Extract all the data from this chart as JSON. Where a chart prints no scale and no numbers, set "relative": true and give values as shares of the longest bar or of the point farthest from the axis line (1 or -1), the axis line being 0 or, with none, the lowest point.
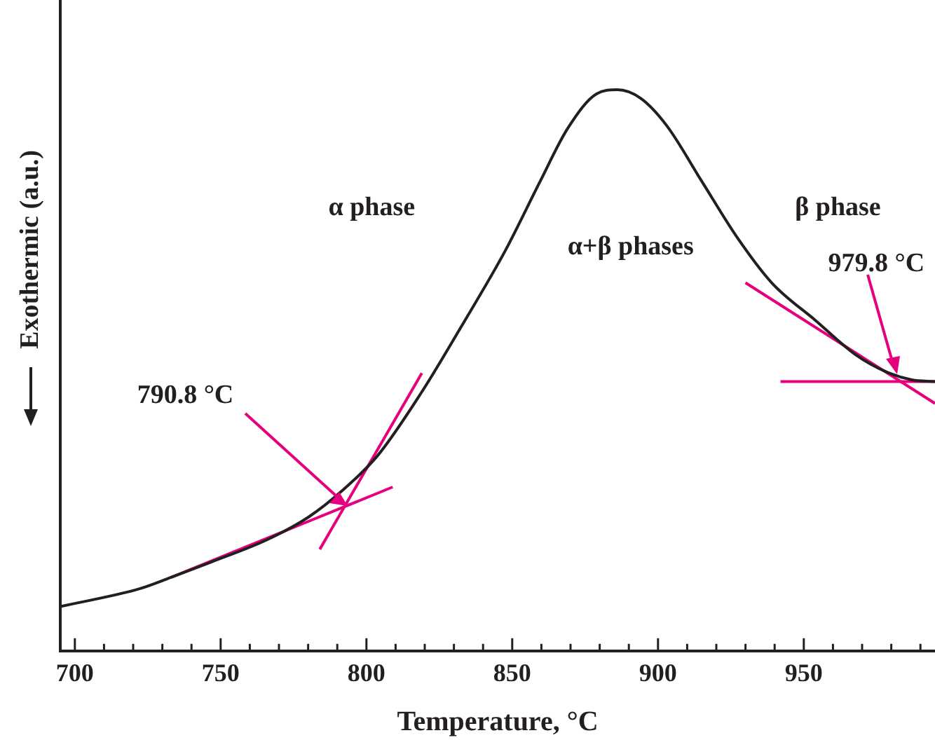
{
  "chart_data": {
    "type": "line",
    "relative": true,
    "xlabel": "Temperature, °C",
    "ylabel": "Exothermic (a.u.)",
    "xlim": [
      695,
      995
    ],
    "xticks": [
      700,
      {
        "value": 710,
        "label": null
      },
      {
        "value": 720,
        "label": null
      },
      {
        "value": 730,
        "label": null
      },
      {
        "value": 740,
        "label": null
      },
      750,
      {
        "value": 760,
        "label": null
      },
      {
        "value": 770,
        "label": null
      },
      {
        "value": 780,
        "label": null
      },
      {
        "value": 790,
        "label": null
      },
      800,
      {
        "value": 810,
        "label": null
      },
      {
        "value": 820,
        "label": null
      },
      {
        "value": 830,
        "label": null
      },
      {
        "value": 840,
        "label": null
      },
      850,
      {
        "value": 860,
        "label": null
      },
      {
        "value": 870,
        "label": null
      },
      {
        "value": 880,
        "label": null
      },
      {
        "value": 890,
        "label": null
      },
      900,
      {
        "value": 910,
        "label": null
      },
      {
        "value": 920,
        "label": null
      },
      {
        "value": 930,
        "label": null
      },
      {
        "value": 940,
        "label": null
      },
      950,
      {
        "value": 960,
        "label": null
      },
      {
        "value": 970,
        "label": null
      },
      {
        "value": 980,
        "label": null
      },
      {
        "value": 990,
        "label": null
      }
    ],
    "grid": false,
    "legend": false,
    "marker": "none",
    "line_style": "solid",
    "series": [
      {
        "color": "#231f20",
        "x": [
          695,
          722.4,
          733,
          746.6,
          765.9,
          780,
          792,
          804,
          818.8,
          833,
          847.6,
          859.6,
          869,
          879,
          886,
          894,
          903,
          915,
          927,
          939,
          954,
          968,
          978,
          987,
          995
        ],
        "values": [
          0.079,
          0.111,
          0.131,
          0.158,
          0.198,
          0.238,
          0.287,
          0.349,
          0.46,
          0.582,
          0.713,
          0.837,
          0.931,
          0.993,
          1,
          0.985,
          0.936,
          0.837,
          0.738,
          0.656,
          0.589,
          0.527,
          0.498,
          0.483,
          0.48
        ]
      },
      {
        "color": "#e6007e",
        "x": [
          733,
          809
        ],
        "values": [
          0.131,
          0.292
        ]
      },
      {
        "color": "#e6007e",
        "x": [
          784,
          819
        ],
        "values": [
          0.181,
          0.495
        ]
      },
      {
        "color": "#e6007e",
        "x": [
          930,
          995
        ],
        "values": [
          0.656,
          0.441
        ]
      },
      {
        "color": "#e6007e",
        "x": [
          942,
          995
        ],
        "values": [
          0.48,
          0.48
        ]
      }
    ],
    "annotations": [
      "α phase",
      "α+β phases",
      "β phase",
      "790.8 °C",
      "979.8 °C"
    ]
  }
}
